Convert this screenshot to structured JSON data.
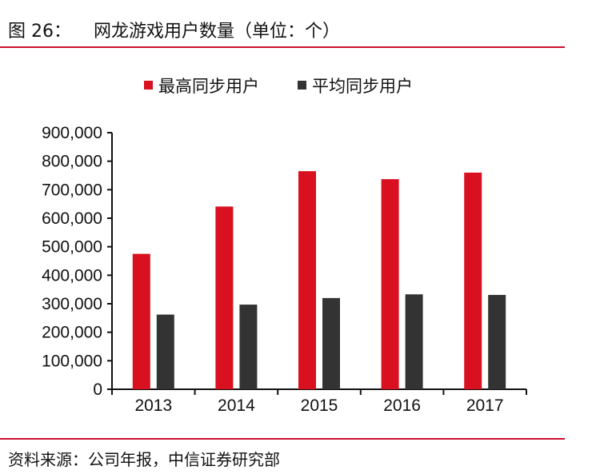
{
  "header": {
    "figure_label": "图 26：",
    "title": "网龙游戏用户数量（单位：个）"
  },
  "footer": {
    "source": "资料来源：公司年报，中信证券研究部"
  },
  "colors": {
    "accent_rule": "#c8102e",
    "peak": "#d8101f",
    "avg": "#333333",
    "axis": "#111111"
  },
  "chart_data": {
    "type": "bar",
    "categories": [
      "2013",
      "2014",
      "2015",
      "2016",
      "2017"
    ],
    "series": [
      {
        "name": "最高同步用户",
        "color": "#d8101f",
        "values": [
          475000,
          641000,
          765000,
          737000,
          760000
        ]
      },
      {
        "name": "平均同步用户",
        "color": "#333333",
        "values": [
          262000,
          297000,
          320000,
          333000,
          331000
        ]
      }
    ],
    "ylim": [
      0,
      900000
    ],
    "yticks": [
      0,
      100000,
      200000,
      300000,
      400000,
      500000,
      600000,
      700000,
      800000,
      900000
    ],
    "ytick_labels": [
      "0",
      "100,000",
      "200,000",
      "300,000",
      "400,000",
      "500,000",
      "600,000",
      "700,000",
      "800,000",
      "900,000"
    ],
    "legend_position": "top-center",
    "grid": false
  }
}
